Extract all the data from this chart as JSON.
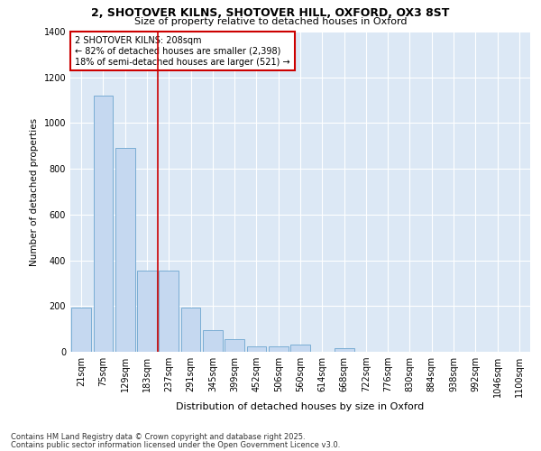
{
  "title1": "2, SHOTOVER KILNS, SHOTOVER HILL, OXFORD, OX3 8ST",
  "title2": "Size of property relative to detached houses in Oxford",
  "xlabel": "Distribution of detached houses by size in Oxford",
  "ylabel": "Number of detached properties",
  "categories": [
    "21sqm",
    "75sqm",
    "129sqm",
    "183sqm",
    "237sqm",
    "291sqm",
    "345sqm",
    "399sqm",
    "452sqm",
    "506sqm",
    "560sqm",
    "614sqm",
    "668sqm",
    "722sqm",
    "776sqm",
    "830sqm",
    "884sqm",
    "938sqm",
    "992sqm",
    "1046sqm",
    "1100sqm"
  ],
  "values": [
    195,
    1120,
    890,
    355,
    355,
    195,
    95,
    55,
    25,
    25,
    30,
    0,
    15,
    0,
    0,
    0,
    0,
    0,
    0,
    0,
    0
  ],
  "bar_color": "#c5d8f0",
  "bar_edge_color": "#7aadd4",
  "vline_color": "#cc0000",
  "annotation_text": "2 SHOTOVER KILNS: 208sqm\n← 82% of detached houses are smaller (2,398)\n18% of semi-detached houses are larger (521) →",
  "ylim": [
    0,
    1400
  ],
  "yticks": [
    0,
    200,
    400,
    600,
    800,
    1000,
    1200,
    1400
  ],
  "bg_color": "#dce8f5",
  "grid_color": "#c8d8e8",
  "footer1": "Contains HM Land Registry data © Crown copyright and database right 2025.",
  "footer2": "Contains public sector information licensed under the Open Government Licence v3.0."
}
